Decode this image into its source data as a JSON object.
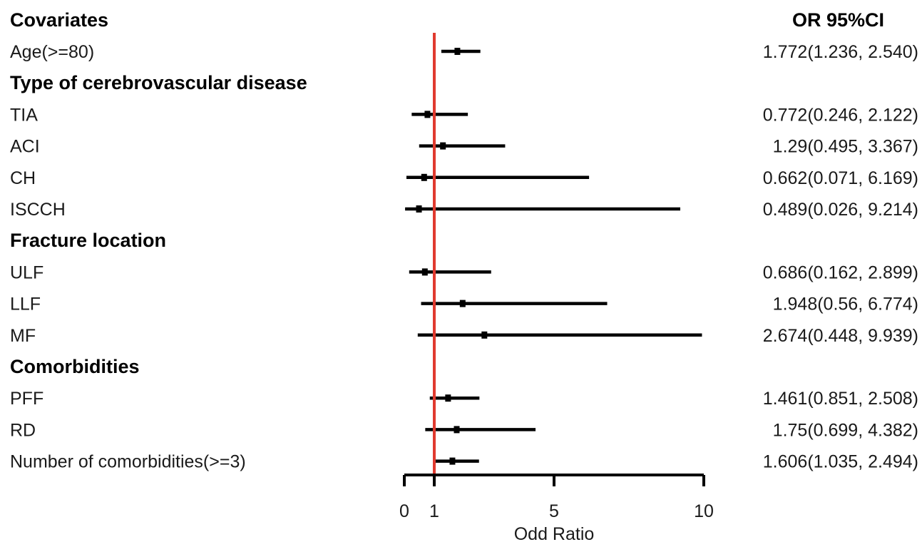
{
  "chart_data": {
    "type": "forest",
    "column_headers": {
      "label": "Covariates",
      "estimate": "OR 95%CI"
    },
    "rows": [
      {
        "label": "Age(>=80)",
        "header": false,
        "or": 1.772,
        "lower": 1.236,
        "upper": 2.54,
        "text": "1.772(1.236, 2.540)"
      },
      {
        "label": "Type of cerebrovascular disease",
        "header": true
      },
      {
        "label": "TIA",
        "header": false,
        "or": 0.772,
        "lower": 0.246,
        "upper": 2.122,
        "text": "0.772(0.246, 2.122)"
      },
      {
        "label": "ACI",
        "header": false,
        "or": 1.29,
        "lower": 0.495,
        "upper": 3.367,
        "text": "1.29(0.495, 3.367)"
      },
      {
        "label": "CH",
        "header": false,
        "or": 0.662,
        "lower": 0.071,
        "upper": 6.169,
        "text": "0.662(0.071, 6.169)"
      },
      {
        "label": "ISCCH",
        "header": false,
        "or": 0.489,
        "lower": 0.026,
        "upper": 9.214,
        "text": "0.489(0.026, 9.214)"
      },
      {
        "label": "Fracture location",
        "header": true
      },
      {
        "label": "ULF",
        "header": false,
        "or": 0.686,
        "lower": 0.162,
        "upper": 2.899,
        "text": "0.686(0.162, 2.899)"
      },
      {
        "label": "LLF",
        "header": false,
        "or": 1.948,
        "lower": 0.56,
        "upper": 6.774,
        "text": "1.948(0.56, 6.774)"
      },
      {
        "label": "MF",
        "header": false,
        "or": 2.674,
        "lower": 0.448,
        "upper": 9.939,
        "text": "2.674(0.448, 9.939)"
      },
      {
        "label": "Comorbidities",
        "header": true
      },
      {
        "label": "PFF",
        "header": false,
        "or": 1.461,
        "lower": 0.851,
        "upper": 2.508,
        "text": "1.461(0.851, 2.508)"
      },
      {
        "label": "RD",
        "header": false,
        "or": 1.75,
        "lower": 0.699,
        "upper": 4.382,
        "text": "1.75(0.699, 4.382)"
      },
      {
        "label": "Number of comorbidities(>=3)",
        "header": false,
        "or": 1.606,
        "lower": 1.035,
        "upper": 2.494,
        "text": "1.606(1.035, 2.494)"
      }
    ],
    "reference_line": 1,
    "xlim": [
      0,
      10
    ],
    "xticks": [
      0,
      1,
      5,
      10
    ],
    "xlabel": "Odd Ratio",
    "colors": {
      "reference_line": "#e03a2f",
      "marks": "#000000"
    }
  }
}
